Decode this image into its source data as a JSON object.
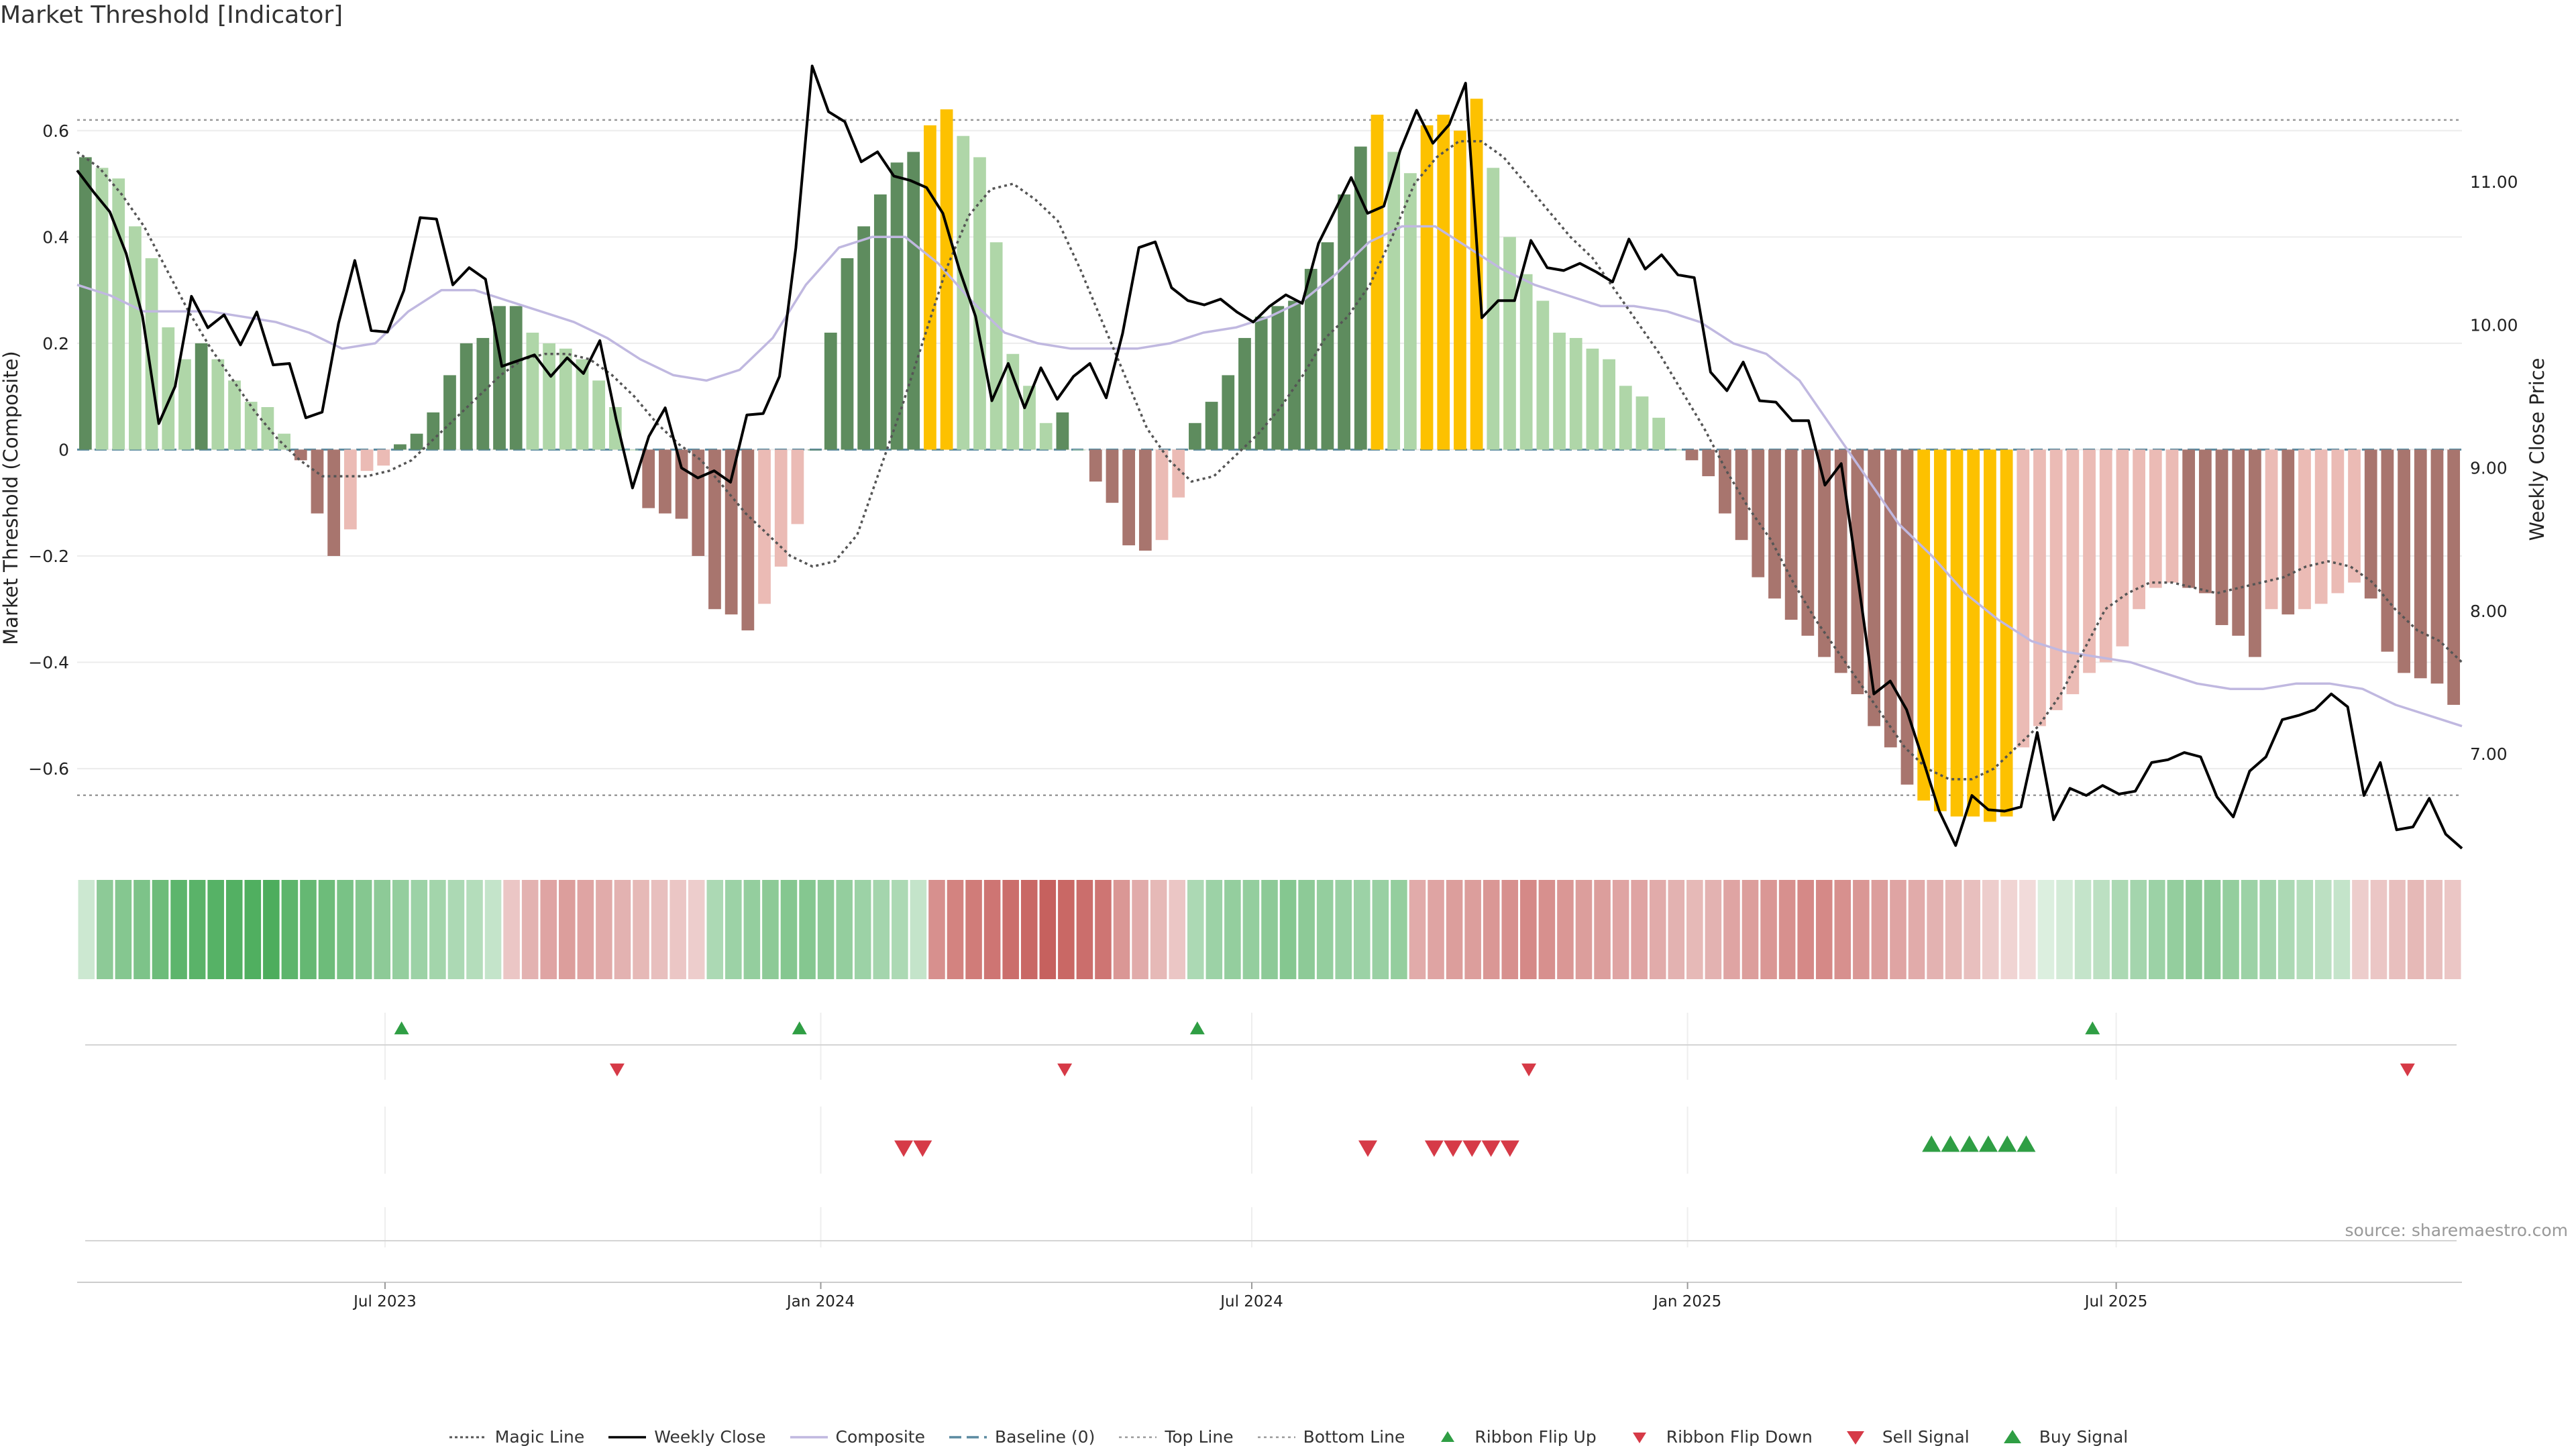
{
  "title": "Market Threshold [Indicator]",
  "source": "source: sharemaestro.com",
  "chart_data": {
    "type": "bar",
    "left_axis": {
      "label": "Market Threshold (Composite)",
      "range": [
        -0.75,
        0.77
      ],
      "ticks": [
        0.6,
        0.4,
        0.2,
        0,
        -0.2,
        -0.4,
        -0.6
      ],
      "tick_labels": [
        "0.6",
        "0.4",
        "0.2",
        "0",
        "−0.2",
        "−0.4",
        "−0.6"
      ]
    },
    "right_axis": {
      "label": "Weekly Close Price",
      "range": [
        6.34,
        11.99
      ],
      "ticks": [
        11,
        10,
        9,
        8,
        7
      ],
      "tick_labels": [
        "11.00",
        "10.00",
        "9.00",
        "8.00",
        "7.00"
      ]
    },
    "x_axis": {
      "ticks": [
        "2023-07-01",
        "2024-01-01",
        "2024-07-01",
        "2025-01-01",
        "2025-07-01"
      ],
      "tick_labels": [
        "Jul 2023",
        "Jan 2024",
        "Jul 2024",
        "Jan 2025",
        "Jul 2025"
      ],
      "range": [
        "2023-02-21",
        "2025-11-24"
      ]
    },
    "top_line": 0.62,
    "bottom_line": -0.65,
    "baseline": 0,
    "composite": [
      0.55,
      0.53,
      0.51,
      0.42,
      0.36,
      0.23,
      0.17,
      0.2,
      0.17,
      0.13,
      0.09,
      0.08,
      0.03,
      -0.02,
      -0.12,
      -0.2,
      -0.15,
      -0.04,
      -0.03,
      0.01,
      0.03,
      0.07,
      0.14,
      0.2,
      0.21,
      0.27,
      0.27,
      0.22,
      0.2,
      0.19,
      0.17,
      0.13,
      0.08,
      0,
      -0.11,
      -0.12,
      -0.13,
      -0.2,
      -0.3,
      -0.31,
      -0.34,
      -0.29,
      -0.22,
      -0.14,
      0,
      0.22,
      0.36,
      0.42,
      0.48,
      0.54,
      0.56,
      0.61,
      0.64,
      0.59,
      0.55,
      0.39,
      0.18,
      0.12,
      0.05,
      0.07,
      0,
      -0.06,
      -0.1,
      -0.18,
      -0.19,
      -0.17,
      -0.09,
      0.05,
      0.09,
      0.14,
      0.21,
      0.25,
      0.27,
      0.28,
      0.34,
      0.39,
      0.48,
      0.57,
      0.63,
      0.56,
      0.52,
      0.61,
      0.63,
      0.6,
      0.66,
      0.53,
      0.4,
      0.33,
      0.28,
      0.22,
      0.21,
      0.19,
      0.17,
      0.12,
      0.1,
      0.06,
      0,
      -0.02,
      -0.05,
      -0.12,
      -0.17,
      -0.24,
      -0.28,
      -0.32,
      -0.35,
      -0.39,
      -0.42,
      -0.46,
      -0.52,
      -0.56,
      -0.63,
      -0.66,
      -0.68,
      -0.69,
      -0.69,
      -0.7,
      -0.69,
      -0.56,
      -0.52,
      -0.49,
      -0.46,
      -0.42,
      -0.4,
      -0.37,
      -0.3,
      -0.26,
      -0.25,
      -0.26,
      -0.27,
      -0.33,
      -0.35,
      -0.39,
      -0.3,
      -0.31,
      -0.3,
      -0.29,
      -0.27,
      -0.25,
      -0.28,
      -0.38,
      -0.42,
      -0.43,
      -0.44,
      -0.48
    ],
    "weekly_close": [
      11.08,
      10.93,
      10.79,
      10.5,
      10.06,
      9.31,
      9.57,
      10.2,
      9.98,
      10.07,
      9.86,
      10.09,
      9.72,
      9.73,
      9.35,
      9.39,
      10.01,
      10.45,
      9.96,
      9.95,
      10.24,
      10.75,
      10.74,
      10.28,
      10.4,
      10.32,
      9.71,
      9.75,
      9.79,
      9.64,
      9.77,
      9.66,
      9.89,
      9.34,
      8.86,
      9.22,
      9.42,
      9.0,
      8.93,
      8.98,
      8.9,
      9.37,
      9.38,
      9.64,
      10.54,
      11.81,
      11.49,
      11.42,
      11.14,
      11.21,
      11.04,
      11.01,
      10.96,
      10.78,
      10.39,
      10.06,
      9.47,
      9.73,
      9.42,
      9.7,
      9.48,
      9.64,
      9.73,
      9.49,
      9.94,
      10.54,
      10.58,
      10.26,
      10.17,
      10.14,
      10.18,
      10.09,
      10.02,
      10.13,
      10.21,
      10.15,
      10.57,
      10.8,
      11.03,
      10.78,
      10.83,
      11.22,
      11.5,
      11.27,
      11.4,
      11.69,
      10.05,
      10.17,
      10.17,
      10.59,
      10.4,
      10.38,
      10.43,
      10.37,
      10.3,
      10.6,
      10.39,
      10.49,
      10.35,
      10.33,
      9.67,
      9.54,
      9.74,
      9.47,
      9.46,
      9.33,
      9.33,
      8.88,
      9.03,
      8.24,
      7.42,
      7.51,
      7.31,
      6.96,
      6.6,
      6.36,
      6.71,
      6.61,
      6.6,
      6.63,
      7.15,
      6.54,
      6.76,
      6.71,
      6.78,
      6.72,
      6.74,
      6.94,
      6.96,
      7.01,
      6.98,
      6.7,
      6.56,
      6.88,
      6.98,
      7.24,
      7.27,
      7.31,
      7.42,
      7.33,
      6.71,
      6.94,
      6.47,
      6.49,
      6.69,
      6.44,
      6.34
    ],
    "magic_line": [
      0.56,
      0.53,
      0.48,
      0.42,
      0.34,
      0.26,
      0.19,
      0.13,
      0.07,
      0.02,
      -0.02,
      -0.05,
      -0.05,
      -0.05,
      -0.04,
      -0.02,
      0.02,
      0.06,
      0.1,
      0.14,
      0.17,
      0.18,
      0.18,
      0.17,
      0.14,
      0.1,
      0.05,
      0.01,
      -0.02,
      -0.07,
      -0.12,
      -0.16,
      -0.2,
      -0.22,
      -0.21,
      -0.16,
      -0.04,
      0.08,
      0.21,
      0.34,
      0.44,
      0.49,
      0.5,
      0.47,
      0.43,
      0.34,
      0.24,
      0.14,
      0.04,
      -0.02,
      -0.06,
      -0.05,
      -0.01,
      0.03,
      0.08,
      0.14,
      0.21,
      0.25,
      0.31,
      0.4,
      0.5,
      0.55,
      0.58,
      0.58,
      0.55,
      0.5,
      0.45,
      0.4,
      0.36,
      0.3,
      0.24,
      0.18,
      0.11,
      0.04,
      -0.04,
      -0.11,
      -0.17,
      -0.25,
      -0.32,
      -0.38,
      -0.44,
      -0.5,
      -0.56,
      -0.6,
      -0.62,
      -0.62,
      -0.6,
      -0.56,
      -0.52,
      -0.46,
      -0.38,
      -0.3,
      -0.27,
      -0.25,
      -0.25,
      -0.26,
      -0.27,
      -0.26,
      -0.25,
      -0.24,
      -0.22,
      -0.21,
      -0.22,
      -0.25,
      -0.3,
      -0.34,
      -0.36,
      -0.4
    ],
    "composite_smooth": [
      0.31,
      0.29,
      0.26,
      0.26,
      0.26,
      0.25,
      0.24,
      0.22,
      0.19,
      0.2,
      0.26,
      0.3,
      0.3,
      0.28,
      0.26,
      0.24,
      0.21,
      0.17,
      0.14,
      0.13,
      0.15,
      0.21,
      0.31,
      0.38,
      0.4,
      0.4,
      0.35,
      0.28,
      0.22,
      0.2,
      0.19,
      0.19,
      0.19,
      0.2,
      0.22,
      0.23,
      0.25,
      0.28,
      0.33,
      0.39,
      0.42,
      0.42,
      0.38,
      0.34,
      0.31,
      0.29,
      0.27,
      0.27,
      0.26,
      0.24,
      0.2,
      0.18,
      0.13,
      0.04,
      -0.05,
      -0.14,
      -0.2,
      -0.27,
      -0.32,
      -0.36,
      -0.38,
      -0.39,
      -0.4,
      -0.42,
      -0.44,
      -0.45,
      -0.45,
      -0.44,
      -0.44,
      -0.45,
      -0.48,
      -0.5,
      -0.52
    ],
    "ribbon_intensity": [
      0.1,
      0.5,
      0.55,
      0.6,
      0.7,
      0.8,
      0.82,
      0.84,
      0.86,
      0.88,
      0.9,
      0.8,
      0.75,
      0.7,
      0.62,
      0.55,
      0.5,
      0.45,
      0.4,
      0.36,
      0.3,
      0.25,
      0.15,
      -0.2,
      -0.35,
      -0.45,
      -0.5,
      -0.45,
      -0.4,
      -0.35,
      -0.3,
      -0.25,
      -0.2,
      -0.15,
      0.3,
      0.4,
      0.45,
      0.5,
      0.55,
      0.55,
      0.5,
      0.45,
      0.4,
      0.35,
      0.3,
      0.15,
      -0.6,
      -0.7,
      -0.75,
      -0.8,
      -0.85,
      -0.9,
      -0.95,
      -0.9,
      -0.85,
      -0.8,
      -0.55,
      -0.4,
      -0.3,
      -0.2,
      0.3,
      0.4,
      0.45,
      0.45,
      0.5,
      0.55,
      0.5,
      0.45,
      0.42,
      0.4,
      0.42,
      0.45,
      -0.4,
      -0.45,
      -0.5,
      -0.5,
      -0.55,
      -0.6,
      -0.65,
      -0.6,
      -0.55,
      -0.5,
      -0.5,
      -0.45,
      -0.45,
      -0.4,
      -0.35,
      -0.3,
      -0.35,
      -0.45,
      -0.5,
      -0.55,
      -0.6,
      -0.65,
      -0.65,
      -0.6,
      -0.55,
      -0.5,
      -0.45,
      -0.4,
      -0.35,
      -0.3,
      -0.25,
      -0.15,
      -0.1,
      -0.05,
      0,
      0.05,
      0.15,
      0.2,
      0.3,
      0.35,
      0.4,
      0.45,
      0.5,
      0.5,
      0.45,
      0.4,
      0.35,
      0.3,
      0.25,
      0.2,
      0.15,
      -0.15,
      -0.2,
      -0.25,
      -0.3,
      -0.25,
      -0.2
    ],
    "ribbon_flip_up": [
      "2023-07-08",
      "2023-12-23",
      "2024-06-08",
      "2025-06-21"
    ],
    "ribbon_flip_down": [
      "2023-10-07",
      "2024-04-13",
      "2024-10-26",
      "2025-11-01"
    ],
    "sell_signal": [
      "2024-02-05",
      "2024-02-13",
      "2024-08-19",
      "2024-09-16",
      "2024-09-24",
      "2024-10-02",
      "2024-10-10",
      "2024-10-18"
    ],
    "buy_signal": [
      "2025-04-14",
      "2025-04-22",
      "2025-04-30",
      "2025-05-08",
      "2025-05-16",
      "2025-05-24"
    ],
    "legend": [
      {
        "name": "Magic Line",
        "symbol": "dotted-dark"
      },
      {
        "name": "Weekly Close",
        "symbol": "solid-black"
      },
      {
        "name": "Composite",
        "symbol": "solid-lavender"
      },
      {
        "name": "Baseline (0)",
        "symbol": "dashed-teal"
      },
      {
        "name": "Top Line",
        "symbol": "dotted-grey"
      },
      {
        "name": "Bottom Line",
        "symbol": "dotted-grey"
      },
      {
        "name": "Ribbon Flip Up",
        "symbol": "triangle-up-green"
      },
      {
        "name": "Ribbon Flip Down",
        "symbol": "triangle-down-red"
      },
      {
        "name": "Sell Signal",
        "symbol": "triangle-down-red-large"
      },
      {
        "name": "Buy Signal",
        "symbol": "triangle-up-green-large"
      }
    ],
    "legend_placement": "bottom-center",
    "colors": {
      "strong_pos": "#5e8c5e",
      "weak_pos": "#afd6a8",
      "strong_neg": "#a8756e",
      "weak_neg": "#ebbbb5",
      "extreme": "#fdc100",
      "weekly_close": "#000000",
      "magic_line": "#555555",
      "composite_smooth": "#c0b8e0",
      "baseline": "#5a8aa0",
      "ribbon_pos": "#3da64f",
      "ribbon_neg": "#c45a57",
      "signal_up": "#2f9e44",
      "signal_down": "#d63a47",
      "threshold_line": "#999999"
    }
  }
}
